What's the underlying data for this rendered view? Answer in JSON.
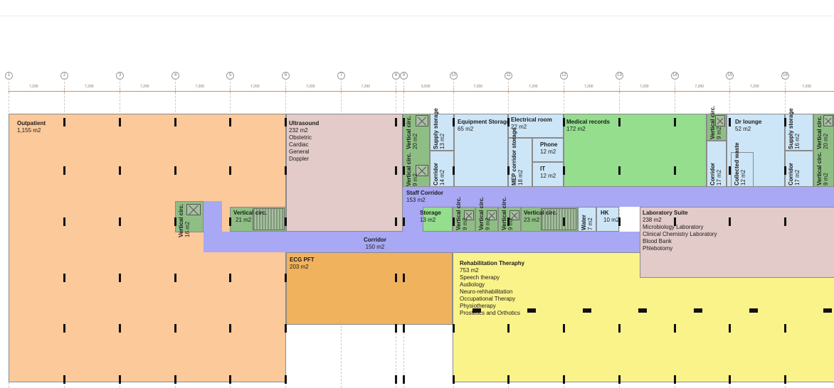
{
  "colors": {
    "outpatient": "#fbc99a",
    "ultrasound": "#e2cbc9",
    "ecg": "#f1b25e",
    "circulation": "#8fbe85",
    "corridor": "#a8a8f5",
    "storage": "#cde6f7",
    "medical_records": "#94de8e",
    "storage_green": "#94de8e",
    "rehab": "#faf38a",
    "lab": "#e2cbc9",
    "dimension": "#e08a4a",
    "column": "#111111"
  },
  "grid": {
    "bubbles": [
      "1",
      "2",
      "3",
      "4",
      "5",
      "6",
      "7",
      "8",
      "9",
      "10",
      "11",
      "12",
      "13",
      "14",
      "15",
      "16"
    ],
    "dimensions": [
      "7,200",
      "7,200",
      "7,200",
      "7,200",
      "7,200",
      "7,200",
      "7,200",
      "6,500",
      "7,200",
      "7,200",
      "7,200",
      "7,200",
      "7,200",
      "7,200",
      "7,200"
    ]
  },
  "rooms": {
    "outpatient": {
      "name": "Outpatient",
      "area": "1,155 m2"
    },
    "ultrasound": {
      "name": "Ultrasound",
      "area": "232 m2",
      "lines": [
        "Obstetric",
        "Cardiac",
        "General",
        "Doppler"
      ]
    },
    "ecg": {
      "name": "ECG PFT",
      "area": "203 m2"
    },
    "corridor": {
      "name": "Corridor",
      "area": "150 m2"
    },
    "staff_corridor": {
      "name": "Staff Corridor",
      "area": "153 m2"
    },
    "storage": {
      "name": "Storage",
      "area": "13 m2"
    },
    "equipment_storage": {
      "name": "Equipment Storage",
      "area": "65 m2"
    },
    "electrical": {
      "name": "Electrical room",
      "area": "22 m2"
    },
    "phone": {
      "name": "Phone",
      "area": "12 m2"
    },
    "it": {
      "name": "IT",
      "area": "12 m2"
    },
    "medical_records": {
      "name": "Medical records",
      "area": "172 m2"
    },
    "dr_lounge": {
      "name": "Dr lounge",
      "area": "52 m2"
    },
    "lab": {
      "name": "Laboratory Suite",
      "area": "238 m2",
      "lines": [
        "Microbiology Laboratory",
        "Clinical Chemistry Laboratory",
        "Blood Bank",
        "Phlebotomy"
      ]
    },
    "rehab": {
      "name": "Rehabilitation Theraphy",
      "area": "753 m2",
      "lines": [
        "Speech therapy",
        "Audiology",
        "Neuro-rehhabilitation",
        "Occupational Therapy",
        "Physiotherapy",
        "Prostetics and Orthotics"
      ]
    },
    "water": {
      "name": "Water",
      "area": "7 m2"
    },
    "hk": {
      "name": "HK",
      "area": "10 m2"
    },
    "vc_left": {
      "name": "Vertical circ.",
      "area": "16 m2"
    },
    "vc_mid": {
      "name": "Vertical circ.",
      "area": "21 m2"
    },
    "vc_staff1": {
      "name": "Vertical circ.",
      "area": "9 m2"
    },
    "vc_staff2": {
      "name": "Vertical circ.",
      "area": "9 m2"
    },
    "vc_staff3": {
      "name": "Vertical circ.",
      "area": "9 m2"
    },
    "vc_staff4": {
      "name": "Vertical circ.",
      "area": "23 m2"
    },
    "vc_top1": {
      "name": "Vertical circ.",
      "area": "20 m2"
    },
    "vc_top2": {
      "name": "Vertical circ.",
      "area": "9 m2"
    },
    "vc_top3": {
      "name": "Vertical circ.",
      "area": "9 m2"
    },
    "vc_top4": {
      "name": "Vertical circ.",
      "area": "20 m2"
    },
    "vc_top5": {
      "name": "Vertical circ.",
      "area": "9 m2"
    },
    "supply1": {
      "name": "Supply storage",
      "area": "13 m2"
    },
    "supply2": {
      "name": "Supply storage",
      "area": "16 m2"
    },
    "corr1": {
      "name": "Corridor",
      "area": "14 m2"
    },
    "corr2": {
      "name": "Corridor",
      "area": "17 m2"
    },
    "corr3": {
      "name": "Corridor",
      "area": "17 m2"
    },
    "mep": {
      "name": "MEP corridor storage",
      "area": "18 m2"
    },
    "waste": {
      "name": "Collected waste",
      "area": "12 m2"
    }
  }
}
